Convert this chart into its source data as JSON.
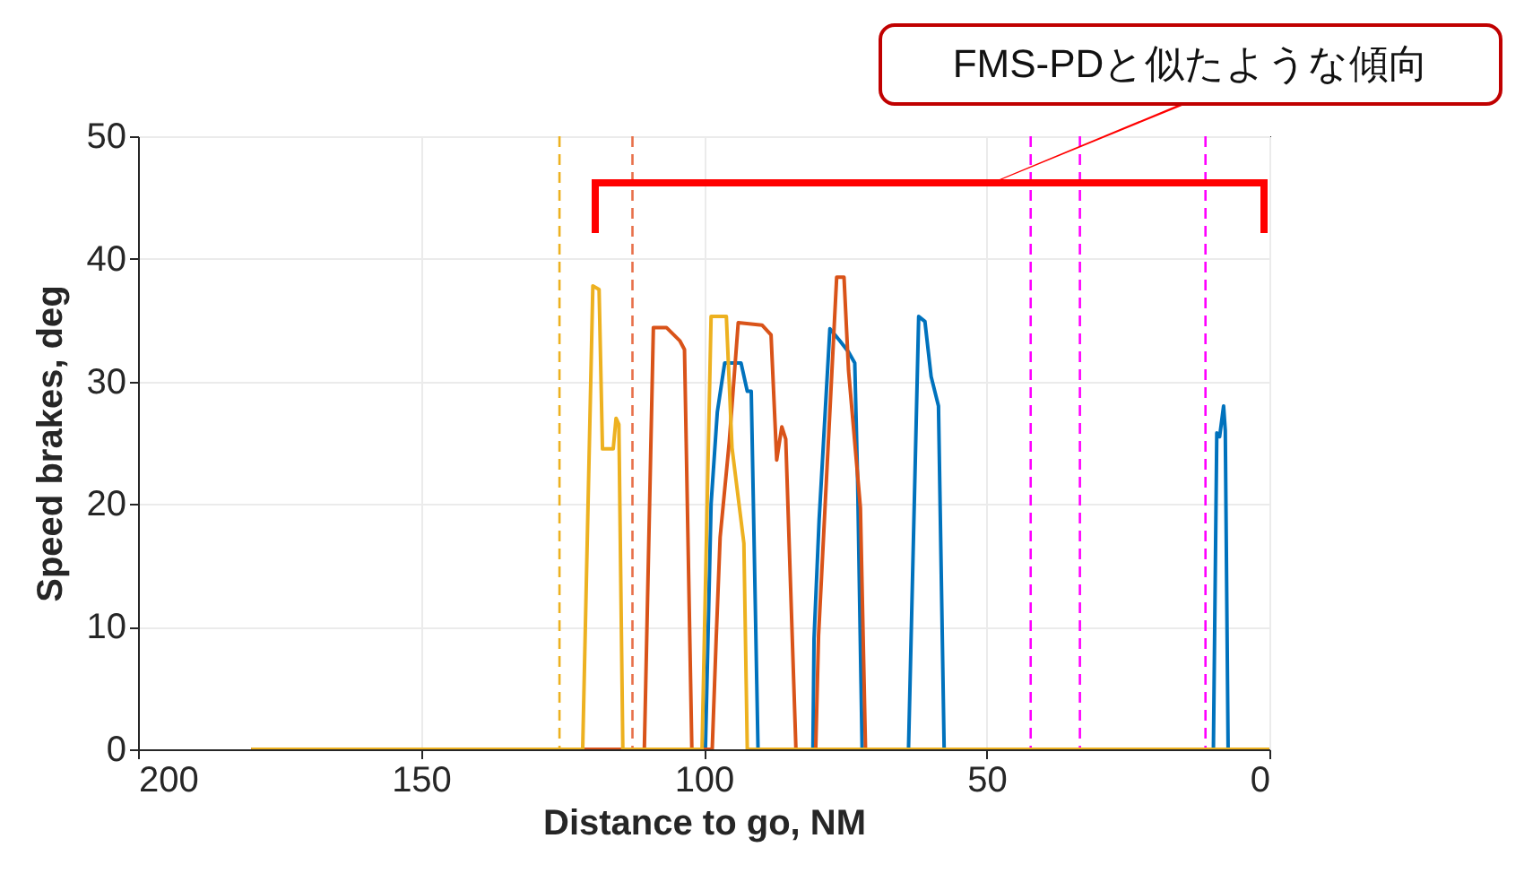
{
  "chart_data": {
    "type": "line",
    "xlabel": "Distance to go, NM",
    "ylabel": "Speed brakes, deg",
    "xlim": [
      200,
      0
    ],
    "xticks": [
      200,
      150,
      100,
      50,
      0
    ],
    "ylim": [
      0,
      50
    ],
    "yticks": [
      0,
      10,
      20,
      30,
      40,
      50
    ],
    "grid": true,
    "line_style": "solid",
    "annotations": [
      "FMS-PDと似たような傾向"
    ],
    "ref_lines": [
      {
        "axis": "x",
        "value": 125.5,
        "color": "#edb120",
        "line_style": "dashed"
      },
      {
        "axis": "x",
        "value": 112.6,
        "color": "#e8704a",
        "line_style": "dashed"
      },
      {
        "axis": "x",
        "value": 42.2,
        "color": "#ff00ff",
        "line_style": "dashed"
      },
      {
        "axis": "x",
        "value": 33.5,
        "color": "#ff00ff",
        "line_style": "dashed"
      },
      {
        "axis": "x",
        "value": 11.3,
        "color": "#ff00ff",
        "line_style": "dashed"
      }
    ],
    "series": [
      {
        "color": "#0072bd",
        "x": [
          180,
          99.7,
          98.7,
          97.6,
          96.3,
          93.4,
          92.3,
          91.6,
          90.4,
          80.7,
          80.5,
          79.6,
          77.7,
          75.9,
          74.4,
          73.3,
          72.8,
          72.0,
          63.8,
          62.0,
          60.9,
          59.8,
          58.5,
          57.5,
          9.9,
          9.3,
          8.8,
          8.1,
          7.8,
          7.3,
          0
        ],
        "values": [
          0,
          0,
          20,
          27.5,
          31.5,
          31.5,
          29.2,
          29.2,
          0,
          0,
          9,
          18.7,
          34.3,
          33.3,
          32.4,
          31.5,
          22,
          0,
          0,
          35.3,
          34.9,
          30.4,
          28,
          0,
          0,
          25.8,
          25.5,
          28,
          26,
          0,
          0
        ]
      },
      {
        "color": "#d95319",
        "x": [
          180,
          110.5,
          108.9,
          106.6,
          104.2,
          103.4,
          102.1,
          98.5,
          97.8,
          97.1,
          95.5,
          93.9,
          89.7,
          88.1,
          87.1,
          86.2,
          85.5,
          83.7,
          80.2,
          79.7,
          76.5,
          75.2,
          74.4,
          72.3,
          71.4,
          0
        ],
        "values": [
          0,
          0,
          34.4,
          34.4,
          33.3,
          32.6,
          0,
          0,
          9,
          17.3,
          25,
          34.8,
          34.6,
          33.8,
          23.6,
          26.3,
          25.3,
          0,
          0,
          9.3,
          38.5,
          38.5,
          30.9,
          19.7,
          0,
          0
        ]
      },
      {
        "color": "#edb120",
        "x": [
          180,
          121.4,
          119.6,
          118.5,
          117.9,
          116.0,
          115.5,
          115.0,
          114.3,
          100.3,
          98.7,
          96.0,
          95.0,
          92.9,
          92.3,
          0
        ],
        "values": [
          0,
          0,
          37.8,
          37.5,
          24.5,
          24.5,
          27,
          26.5,
          0,
          0,
          35.3,
          35.3,
          24.6,
          16.8,
          0,
          0
        ]
      }
    ]
  }
}
